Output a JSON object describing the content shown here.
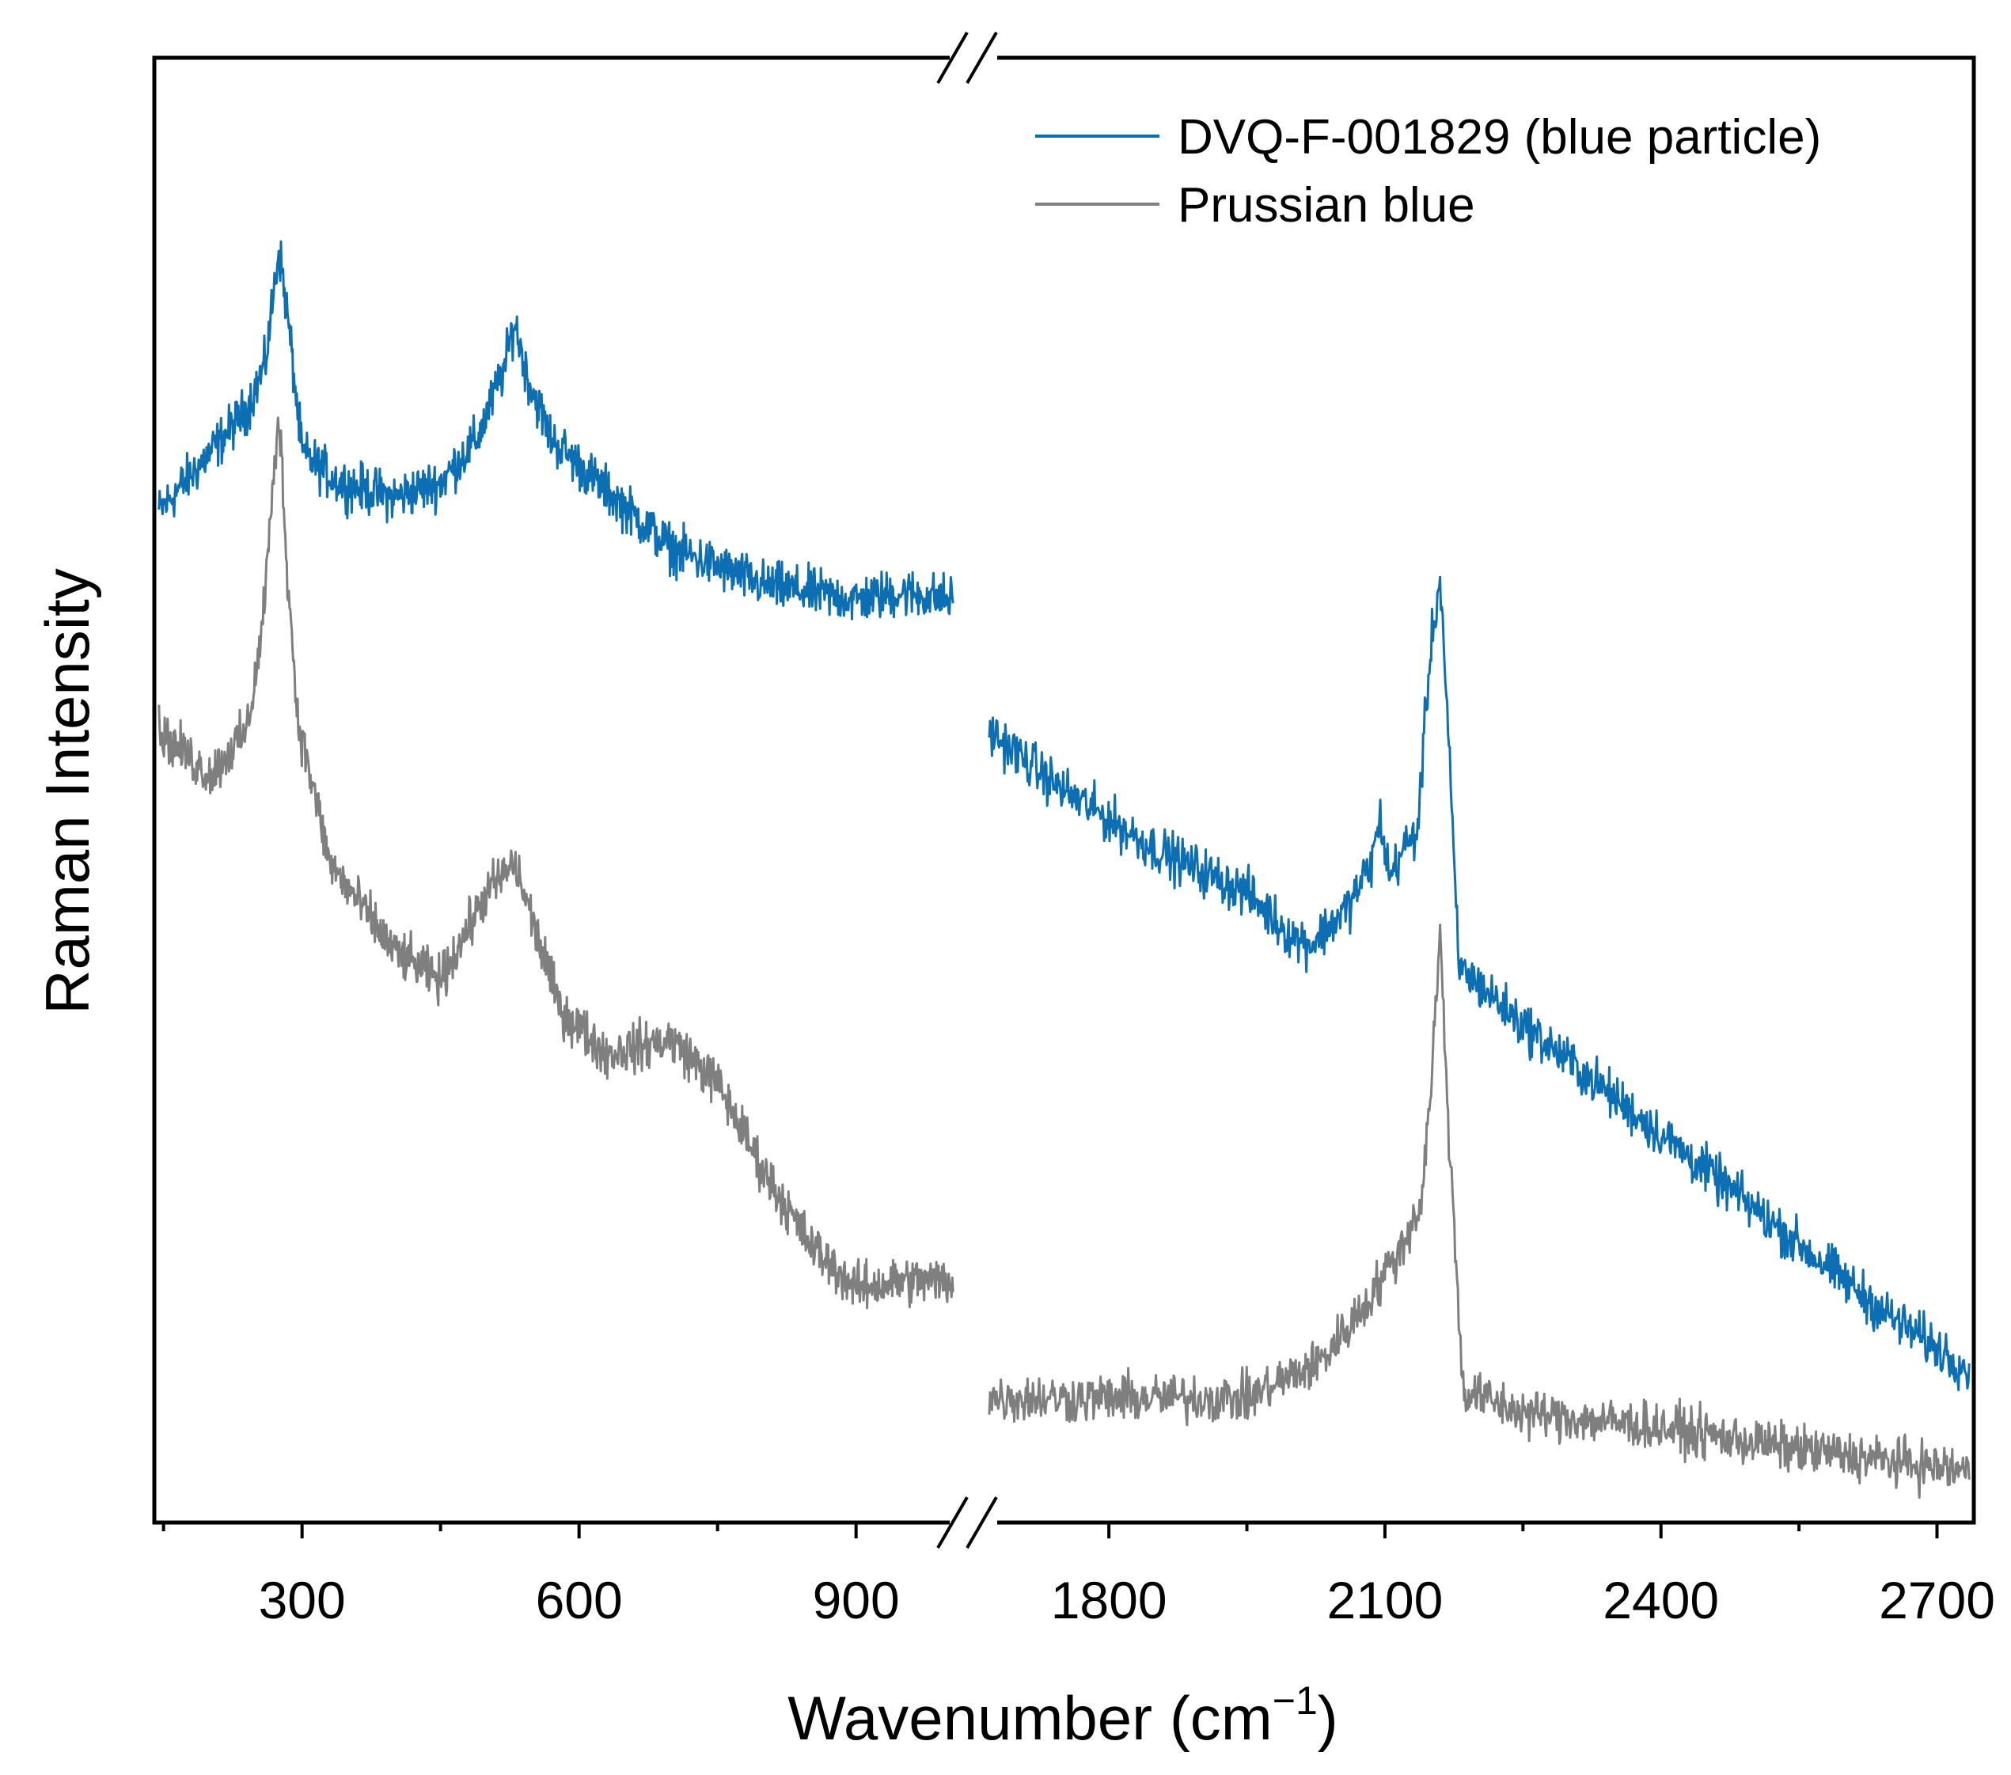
{
  "chart_data": {
    "type": "line",
    "title": "",
    "xlabel": "Wavenumber (cm⁻¹)",
    "ylabel": "Raman Intensity",
    "xlabel_main": "Wavenumber (cm",
    "xlabel_sup": "−1",
    "xlabel_close": ")",
    "broken_axis": true,
    "segments": [
      {
        "name": "left",
        "xlim": [
          140,
          1010
        ],
        "ticks": [
          300,
          600,
          900
        ],
        "tick_labels": [
          "300",
          "600",
          "900"
        ],
        "minor_step": 150
      },
      {
        "name": "right",
        "xlim": [
          1670,
          2740
        ],
        "ticks": [
          1800,
          2100,
          2400,
          2700
        ],
        "tick_labels": [
          "1800",
          "2100",
          "2400",
          "2700"
        ],
        "minor_step": 150
      }
    ],
    "ylim": [
      0,
      100
    ],
    "y_ticks_shown": false,
    "legend_position": "top-right",
    "series": [
      {
        "name": "DVQ-F-001829 (blue particle)",
        "color": "#0C6FB3",
        "noise": 1.4,
        "segments": [
          {
            "x": [
              145,
              200,
              240,
              260,
              275,
              285,
              300,
              340,
              400,
              450,
              490,
              520,
              530,
              545,
              570,
              620,
              700,
              800,
              900,
              950,
              1005
            ],
            "y": [
              69,
              73,
              76,
              79,
              87,
              82,
              73,
              71,
              70,
              71,
              74,
              79,
              82,
              78,
              74,
              71,
              66.5,
              64,
              63,
              63.5,
              63
            ]
          },
          {
            "x": [
              1670,
              1750,
              1850,
              1950,
              2000,
              2020,
              2060,
              2085,
              2095,
              2105,
              2120,
              2135,
              2150,
              2160,
              2168,
              2180,
              2250,
              2350,
              2450,
              2550,
              2650,
              2735
            ],
            "y": [
              54,
              50,
              46,
              43,
              40,
              39.5,
              42,
              45,
              48,
              44,
              46,
              47,
              60,
              64.5,
              55,
              38,
              34,
              29,
              24,
              19,
              14,
              10.5
            ]
          }
        ]
      },
      {
        "name": "Prussian blue",
        "color": "#7F7F7F",
        "noise": 1.4,
        "segments": [
          {
            "x": [
              145,
              200,
              240,
              255,
              268,
              275,
              283,
              295,
              330,
              400,
              450,
              500,
              530,
              545,
              580,
              630,
              700,
              750,
              800,
              850,
              900,
              950,
              1005
            ],
            "y": [
              54,
              51,
              54,
              60,
              70,
              76,
              66,
              55,
              45,
              39,
              37,
              43,
              45,
              42,
              35,
              32,
              33,
              30,
              24,
              19,
              16,
              16.5,
              16.5
            ]
          },
          {
            "x": [
              1670,
              1800,
              1950,
              2030,
              2080,
              2100,
              2120,
              2140,
              2150,
              2160,
              2170,
              2185,
              2250,
              2400,
              2550,
              2735
            ],
            "y": [
              8.5,
              8.5,
              8.5,
              11,
              15,
              17,
              19,
              22,
              30,
              40,
              26,
              9,
              7.5,
              6.5,
              5,
              3.5
            ]
          }
        ]
      }
    ]
  }
}
